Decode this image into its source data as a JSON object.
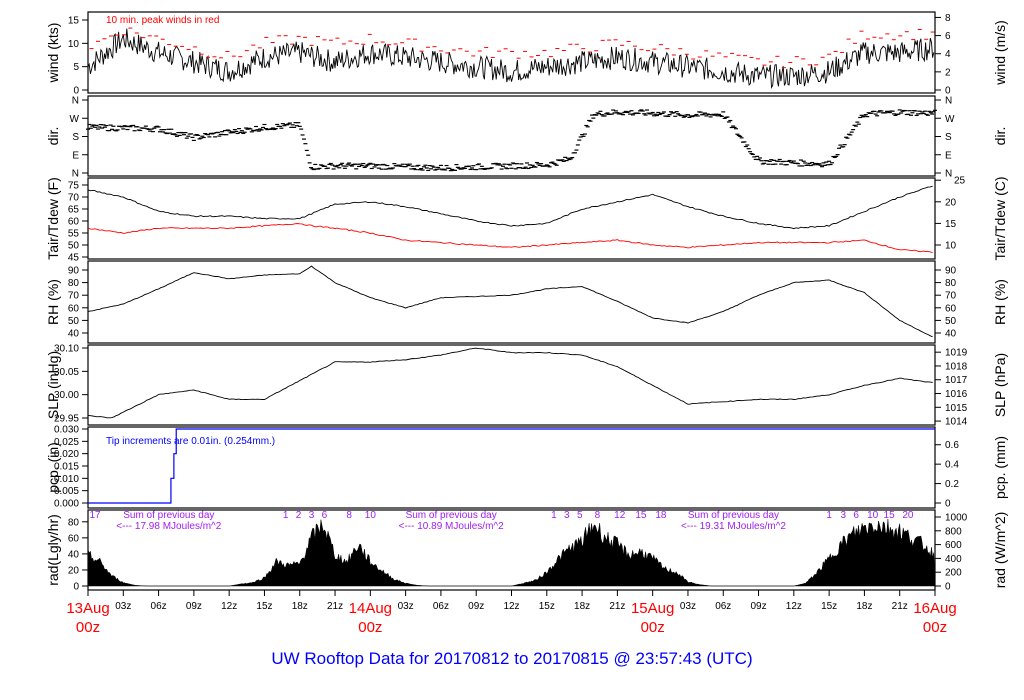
{
  "title": "UW Rooftop Data for 20170812  to  20170815 @ 23:57:43  (UTC)",
  "chart_data": [
    {
      "id": "wind",
      "type": "line",
      "ylabel": "wind (kts)",
      "ylabel_right": "wind (m/s)",
      "annotation": "10 min. peak winds in red",
      "yticks": [
        0,
        5,
        10,
        15
      ],
      "yticks_right": [
        0,
        2,
        4,
        6,
        8
      ],
      "x_hours": [
        0,
        3,
        6,
        9,
        12,
        15,
        18,
        21,
        24,
        27,
        30,
        33,
        36,
        39,
        42,
        45,
        48,
        51,
        54,
        57,
        60,
        63,
        66,
        69,
        72
      ],
      "series": [
        {
          "name": "wind",
          "color": "#000000",
          "values": [
            5,
            11,
            8,
            6,
            4,
            7,
            8,
            6,
            8,
            7,
            6,
            5,
            4,
            5,
            6,
            7,
            6,
            5,
            4,
            3,
            3,
            4,
            8,
            8,
            9
          ]
        },
        {
          "name": "peak",
          "color": "#ff0000",
          "values": [
            9,
            13,
            11,
            9,
            7,
            10,
            11,
            10,
            11,
            10,
            9,
            8,
            8,
            8,
            9,
            10,
            9,
            8,
            7,
            6,
            6,
            7,
            12,
            12,
            12
          ]
        }
      ]
    },
    {
      "id": "dir",
      "type": "scatter",
      "ylabel": "dir.",
      "ylabel_right": "dir.",
      "ytick_labels": [
        "N",
        "E",
        "S",
        "W",
        "N"
      ],
      "yticks": [
        0,
        90,
        180,
        270,
        360
      ],
      "x_hours": [
        0,
        3,
        6,
        9,
        12,
        15,
        18,
        19,
        21,
        24,
        27,
        30,
        33,
        36,
        39,
        41,
        43,
        45,
        48,
        51,
        54,
        57,
        60,
        63,
        66,
        69,
        72
      ],
      "values": [
        225,
        222,
        218,
        175,
        200,
        225,
        235,
        30,
        35,
        35,
        30,
        25,
        30,
        35,
        40,
        70,
        290,
        300,
        295,
        285,
        290,
        60,
        50,
        45,
        290,
        300,
        295
      ]
    },
    {
      "id": "temp",
      "type": "line",
      "ylabel": "Tair/Tdew (F)",
      "ylabel_right": "Tair/Tdew (C)",
      "yticks": [
        45,
        50,
        55,
        60,
        65,
        70,
        75
      ],
      "yticks_right": [
        10,
        15,
        20,
        25
      ],
      "x_hours": [
        0,
        3,
        6,
        9,
        12,
        15,
        18,
        19,
        21,
        24,
        27,
        30,
        33,
        36,
        39,
        42,
        45,
        48,
        51,
        54,
        57,
        60,
        63,
        66,
        69,
        72
      ],
      "series": [
        {
          "name": "Tair",
          "color": "#000000",
          "values": [
            73,
            70,
            64,
            62,
            62,
            61,
            61,
            63,
            67,
            68,
            66,
            63,
            60,
            58,
            59,
            65,
            68,
            71,
            66,
            62,
            59,
            57,
            58,
            64,
            70,
            75
          ]
        },
        {
          "name": "Tdew",
          "color": "#ff0000",
          "values": [
            57,
            55,
            57,
            57,
            57,
            58,
            59,
            58,
            57,
            55,
            52,
            51,
            50,
            49,
            50,
            51,
            52,
            50,
            49,
            50,
            51,
            51,
            51,
            52,
            48,
            47
          ]
        }
      ]
    },
    {
      "id": "rh",
      "type": "line",
      "ylabel": "RH (%)",
      "ylabel_right": "RH (%)",
      "yticks": [
        40,
        50,
        60,
        70,
        80,
        90
      ],
      "yticks_right": [
        40,
        50,
        60,
        70,
        80,
        90
      ],
      "x_hours": [
        0,
        3,
        6,
        9,
        12,
        15,
        18,
        19,
        21,
        24,
        27,
        30,
        33,
        36,
        39,
        42,
        45,
        48,
        51,
        54,
        57,
        60,
        63,
        66,
        69,
        72
      ],
      "values": [
        57,
        63,
        75,
        88,
        83,
        86,
        87,
        93,
        80,
        68,
        60,
        68,
        69,
        70,
        75,
        77,
        65,
        52,
        48,
        57,
        70,
        80,
        82,
        72,
        50,
        36
      ]
    },
    {
      "id": "slp",
      "type": "line",
      "ylabel": "SLP (inHg)",
      "ylabel_right": "SLP (hPa)",
      "yticks": [
        29.95,
        30.0,
        30.05,
        30.1
      ],
      "ytick_labels": [
        "29.95",
        "30.00",
        "30.05",
        "30.10"
      ],
      "yticks_right": [
        1014,
        1015,
        1016,
        1017,
        1018,
        1019
      ],
      "x_hours": [
        0,
        2,
        6,
        9,
        12,
        15,
        18,
        21,
        24,
        27,
        30,
        33,
        36,
        39,
        42,
        45,
        48,
        51,
        54,
        57,
        60,
        63,
        66,
        69,
        72
      ],
      "values": [
        29.955,
        29.95,
        30.0,
        30.01,
        29.99,
        29.99,
        30.03,
        30.07,
        30.07,
        30.075,
        30.085,
        30.1,
        30.09,
        30.09,
        30.085,
        30.06,
        30.02,
        29.98,
        29.985,
        29.99,
        29.99,
        30.0,
        30.02,
        30.035,
        30.025
      ]
    },
    {
      "id": "pcp",
      "type": "step",
      "ylabel": "pcp. (in)",
      "ylabel_right": "pcp. (mm)",
      "annotation": "Tip increments are 0.01in. (0.254mm.)",
      "yticks": [
        0,
        0.005,
        0.01,
        0.015,
        0.02,
        0.025,
        0.03
      ],
      "ytick_labels": [
        "0.000",
        "0.005",
        "0.010",
        "0.015",
        "0.020",
        "0.025",
        "0.030"
      ],
      "yticks_right": [
        0,
        0.2,
        0.4,
        0.6
      ],
      "color": "#0000ff",
      "x_hours": [
        0,
        7.05,
        7.3,
        7.5,
        72
      ],
      "values": [
        0,
        0.01,
        0.02,
        0.03,
        0.03
      ]
    },
    {
      "id": "rad",
      "type": "area",
      "ylabel": "rad(Lgly/hr)",
      "ylabel_right": "rad (W/m^2)",
      "yticks": [
        0,
        20,
        40,
        60,
        80
      ],
      "yticks_right": [
        0,
        200,
        400,
        600,
        800,
        1000
      ],
      "units": "W/m^2",
      "x_hours_step": 1,
      "values": [
        450,
        350,
        150,
        50,
        10,
        0,
        0,
        0,
        0,
        0,
        0,
        0,
        0,
        30,
        50,
        120,
        350,
        300,
        320,
        700,
        900,
        450,
        350,
        600,
        350,
        220,
        100,
        40,
        10,
        0,
        0,
        0,
        0,
        0,
        0,
        0,
        0,
        40,
        80,
        200,
        400,
        550,
        650,
        900,
        700,
        600,
        450,
        500,
        400,
        250,
        200,
        60,
        20,
        0,
        0,
        0,
        0,
        0,
        0,
        0,
        0,
        40,
        200,
        400,
        600,
        750,
        850,
        900,
        850,
        800,
        700,
        600,
        450
      ],
      "hour_marks": [
        {
          "h": 0.6,
          "label": "17"
        },
        {
          "h": 16.8,
          "label": "1"
        },
        {
          "h": 17.9,
          "label": "2"
        },
        {
          "h": 19.0,
          "label": "3"
        },
        {
          "h": 20.1,
          "label": "6"
        },
        {
          "h": 22.2,
          "label": "8"
        },
        {
          "h": 24.0,
          "label": "10"
        },
        {
          "h": 39.6,
          "label": "1"
        },
        {
          "h": 40.7,
          "label": "3"
        },
        {
          "h": 41.8,
          "label": "5"
        },
        {
          "h": 43.3,
          "label": "8"
        },
        {
          "h": 45.2,
          "label": "12"
        },
        {
          "h": 47.0,
          "label": "15"
        },
        {
          "h": 48.7,
          "label": "18"
        },
        {
          "h": 63.0,
          "label": "1"
        },
        {
          "h": 64.2,
          "label": "3"
        },
        {
          "h": 65.3,
          "label": "6"
        },
        {
          "h": 66.7,
          "label": "10"
        },
        {
          "h": 68.1,
          "label": "15"
        },
        {
          "h": 69.7,
          "label": "20"
        }
      ],
      "daily_sums": [
        {
          "h": 5.0,
          "line1": "Sum of previous day",
          "line2": "<--- 17.98 MJoules/m^2"
        },
        {
          "h": 29.0,
          "line1": "Sum of previous day",
          "line2": "<--- 10.89 MJoules/m^2"
        },
        {
          "h": 53.0,
          "line1": "Sum of previous day",
          "line2": "<--- 19.31 MJoules/m^2"
        }
      ]
    }
  ],
  "x_axis": {
    "hour_ticks": [
      {
        "h": 3,
        "label": "03z"
      },
      {
        "h": 6,
        "label": "06z"
      },
      {
        "h": 9,
        "label": "09z"
      },
      {
        "h": 12,
        "label": "12z"
      },
      {
        "h": 15,
        "label": "15z"
      },
      {
        "h": 18,
        "label": "18z"
      },
      {
        "h": 21,
        "label": "21z"
      },
      {
        "h": 27,
        "label": "03z"
      },
      {
        "h": 30,
        "label": "06z"
      },
      {
        "h": 33,
        "label": "09z"
      },
      {
        "h": 36,
        "label": "12z"
      },
      {
        "h": 39,
        "label": "15z"
      },
      {
        "h": 42,
        "label": "18z"
      },
      {
        "h": 45,
        "label": "21z"
      },
      {
        "h": 51,
        "label": "03z"
      },
      {
        "h": 54,
        "label": "06z"
      },
      {
        "h": 57,
        "label": "09z"
      },
      {
        "h": 60,
        "label": "12z"
      },
      {
        "h": 63,
        "label": "15z"
      },
      {
        "h": 66,
        "label": "18z"
      },
      {
        "h": 69,
        "label": "21z"
      }
    ],
    "day_ticks": [
      {
        "h": 0,
        "day": "13Aug",
        "hour": "00z"
      },
      {
        "h": 24,
        "day": "14Aug",
        "hour": "00z"
      },
      {
        "h": 48,
        "day": "15Aug",
        "hour": "00z"
      },
      {
        "h": 72,
        "day": "16Aug",
        "hour": "00z"
      }
    ]
  }
}
